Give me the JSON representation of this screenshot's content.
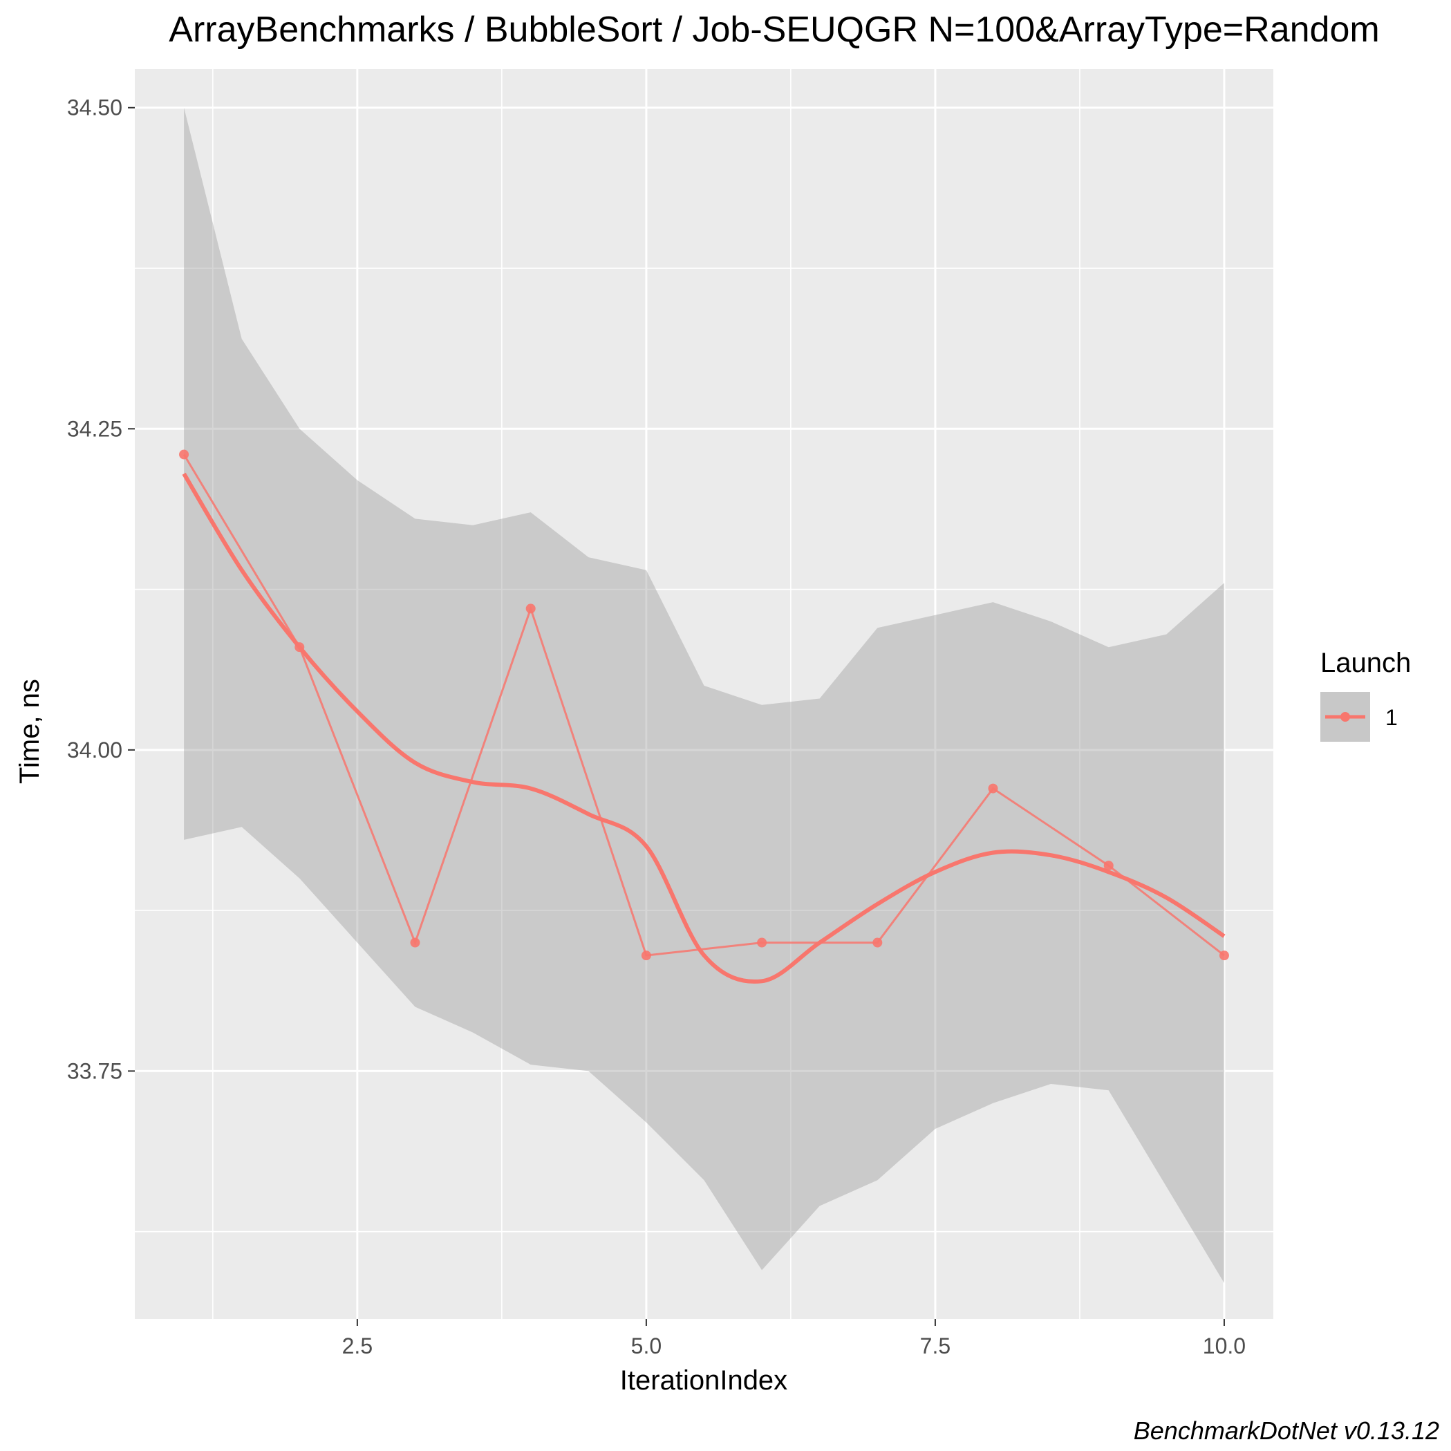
{
  "chart_data": {
    "type": "line",
    "title": "ArrayBenchmarks / BubbleSort / Job-SEUQGR N=100&ArrayType=Random",
    "xlabel": "IterationIndex",
    "ylabel": "Time, ns",
    "caption": "BenchmarkDotNet v0.13.12",
    "xlim": [
      0.575,
      10.425
    ],
    "ylim": [
      33.557,
      34.53
    ],
    "x_ticks": [
      2.5,
      5.0,
      7.5,
      10.0
    ],
    "x_tick_labels": [
      "2.5",
      "5.0",
      "7.5",
      "10.0"
    ],
    "y_ticks": [
      33.75,
      34.0,
      34.25,
      34.5
    ],
    "y_tick_labels": [
      "33.75",
      "34.00",
      "34.25",
      "34.50"
    ],
    "grid": true,
    "legend": {
      "title": "Launch",
      "position": "right",
      "entries": [
        "1"
      ]
    },
    "series": [
      {
        "name": "1",
        "color": "#F8766D",
        "x": [
          1,
          2,
          3,
          4,
          5,
          6,
          7,
          8,
          9,
          10
        ],
        "values": [
          34.23,
          34.08,
          33.85,
          34.11,
          33.84,
          33.85,
          33.85,
          33.97,
          33.91,
          33.84
        ]
      }
    ],
    "smooth": {
      "color": "#F8766D",
      "band_color": "#999999",
      "x": [
        1,
        1.5,
        2,
        2.5,
        3,
        3.5,
        4,
        4.5,
        5,
        5.5,
        6,
        6.5,
        7,
        7.5,
        8,
        8.5,
        9,
        9.5,
        10
      ],
      "y": [
        34.215,
        34.14,
        34.08,
        34.03,
        33.99,
        33.975,
        33.97,
        33.95,
        33.925,
        33.84,
        33.82,
        33.85,
        33.88,
        33.905,
        33.92,
        33.918,
        33.905,
        33.885,
        33.855
      ],
      "ymin": [
        33.93,
        33.94,
        33.9,
        33.85,
        33.8,
        33.78,
        33.755,
        33.75,
        33.71,
        33.665,
        33.595,
        33.645,
        33.665,
        33.705,
        33.725,
        33.74,
        33.735,
        33.66,
        33.585
      ],
      "ymax": [
        34.5,
        34.32,
        34.25,
        34.21,
        34.18,
        34.175,
        34.185,
        34.15,
        34.14,
        34.05,
        34.035,
        34.04,
        34.095,
        34.105,
        34.115,
        34.1,
        34.08,
        34.09,
        34.13
      ]
    }
  }
}
